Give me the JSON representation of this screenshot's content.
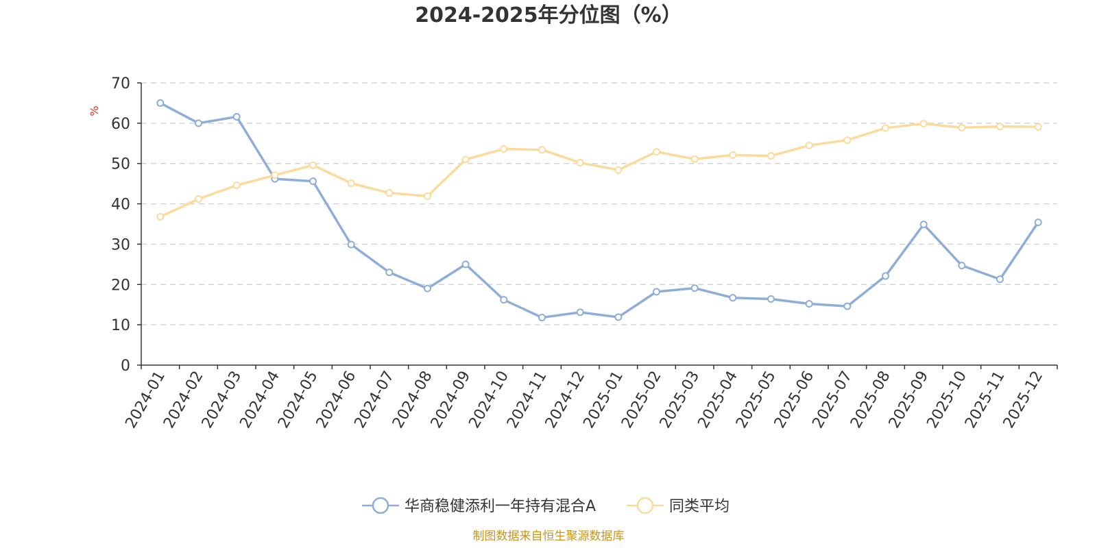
{
  "colors": {
    "series_1": "#8eaed8",
    "series_2": "#fbdb9c",
    "unit": "#e8322c",
    "source": "#c8951a"
  },
  "source_note": "制图数据来自恒生聚源数据库",
  "chart_data": {
    "type": "line",
    "title": "2024-2025年分位图（%）",
    "ylabel": "%",
    "ylim": [
      0,
      70
    ],
    "yticks": [
      0,
      10,
      20,
      30,
      40,
      50,
      60,
      70
    ],
    "grid": true,
    "legend_position": "bottom",
    "categories": [
      "2024-01",
      "2024-02",
      "2024-03",
      "2024-04",
      "2024-05",
      "2024-06",
      "2024-07",
      "2024-08",
      "2024-09",
      "2024-10",
      "2024-11",
      "2024-12",
      "2025-01",
      "2025-02",
      "2025-03",
      "2025-04",
      "2025-05",
      "2025-06",
      "2025-07",
      "2025-08",
      "2025-09",
      "2025-10",
      "2025-11",
      "2025-12"
    ],
    "series": [
      {
        "name": "华商稳健添利一年持有混合A",
        "color": "#8eaed8",
        "values": [
          65,
          60,
          61.6,
          46.2,
          45.6,
          29.9,
          23,
          19,
          25,
          16.2,
          11.8,
          13.1,
          11.9,
          18.2,
          19.1,
          16.7,
          16.4,
          15.2,
          14.6,
          22.1,
          34.9,
          24.7,
          21.3,
          35.4
        ]
      },
      {
        "name": "同类平均",
        "color": "#fbdb9c",
        "values": [
          36.8,
          41.2,
          44.6,
          47.1,
          49.6,
          45.1,
          42.7,
          41.9,
          51,
          53.6,
          53.4,
          50.2,
          48.4,
          52.9,
          51.1,
          52.1,
          51.9,
          54.5,
          55.8,
          58.8,
          59.9,
          58.9,
          59.2,
          59.1
        ]
      }
    ]
  }
}
